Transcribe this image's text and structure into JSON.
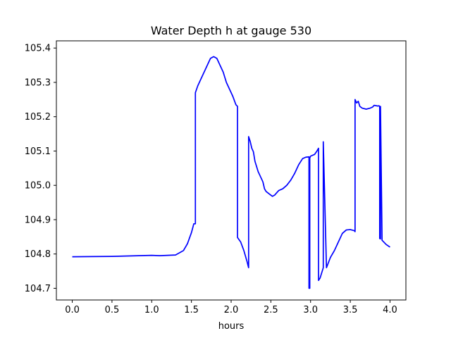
{
  "chart_data": {
    "type": "line",
    "title": "Water Depth h at gauge 530",
    "xlabel": "hours",
    "ylabel": "",
    "xlim": [
      -0.2,
      4.2
    ],
    "ylim": [
      104.666,
      105.421
    ],
    "xticks": [
      0.0,
      0.5,
      1.0,
      1.5,
      2.0,
      2.5,
      3.0,
      3.5,
      4.0
    ],
    "xtick_labels": [
      "0.0",
      "0.5",
      "1.0",
      "1.5",
      "2.0",
      "2.5",
      "3.0",
      "3.5",
      "4.0"
    ],
    "yticks": [
      104.7,
      104.8,
      104.9,
      105.0,
      105.1,
      105.2,
      105.3,
      105.4
    ],
    "ytick_labels": [
      "104.7",
      "104.8",
      "104.9",
      "105.0",
      "105.1",
      "105.2",
      "105.3",
      "105.4"
    ],
    "grid": false,
    "series": [
      {
        "color": "#0000ff",
        "x": [
          0.0,
          0.5,
          1.0,
          1.1,
          1.3,
          1.4,
          1.45,
          1.5,
          1.53,
          1.55,
          1.55,
          1.58,
          1.62,
          1.66,
          1.7,
          1.74,
          1.78,
          1.82,
          1.86,
          1.9,
          1.94,
          1.98,
          2.02,
          2.06,
          2.08,
          2.08,
          2.12,
          2.16,
          2.2,
          2.22,
          2.22,
          2.24,
          2.26,
          2.28,
          2.3,
          2.32,
          2.34,
          2.36,
          2.38,
          2.4,
          2.42,
          2.44,
          2.48,
          2.52,
          2.55,
          2.58,
          2.6,
          2.65,
          2.7,
          2.75,
          2.8,
          2.85,
          2.9,
          2.94,
          2.98,
          2.98,
          2.99,
          2.99,
          3.0,
          3.05,
          3.08,
          3.1,
          3.1,
          3.12,
          3.14,
          3.16,
          3.16,
          3.2,
          3.25,
          3.3,
          3.35,
          3.4,
          3.45,
          3.5,
          3.55,
          3.56,
          3.56,
          3.58,
          3.6,
          3.62,
          3.65,
          3.7,
          3.75,
          3.78,
          3.8,
          3.85,
          3.86,
          3.87,
          3.87,
          3.88,
          3.88,
          3.9,
          3.95,
          4.0
        ],
        "y": [
          104.792,
          104.793,
          104.796,
          104.795,
          104.797,
          104.81,
          104.83,
          104.862,
          104.888,
          104.888,
          105.27,
          105.29,
          105.31,
          105.33,
          105.35,
          105.37,
          105.375,
          105.37,
          105.35,
          105.33,
          105.3,
          105.28,
          105.26,
          105.235,
          105.23,
          104.848,
          104.835,
          104.81,
          104.778,
          104.76,
          105.142,
          105.128,
          105.108,
          105.098,
          105.07,
          105.055,
          105.04,
          105.03,
          105.02,
          105.01,
          104.99,
          104.982,
          104.975,
          104.968,
          104.972,
          104.98,
          104.985,
          104.99,
          105.0,
          105.015,
          105.035,
          105.06,
          105.078,
          105.082,
          105.083,
          104.7,
          104.7,
          105.08,
          105.085,
          105.09,
          105.1,
          105.108,
          104.723,
          104.73,
          104.745,
          104.76,
          105.127,
          104.76,
          104.79,
          104.81,
          104.835,
          104.86,
          104.87,
          104.871,
          104.868,
          104.865,
          105.25,
          105.24,
          105.245,
          105.23,
          105.225,
          105.222,
          105.225,
          105.228,
          105.233,
          105.231,
          105.232,
          105.23,
          104.845,
          104.844,
          105.23,
          104.84,
          104.828,
          104.82
        ]
      }
    ]
  }
}
